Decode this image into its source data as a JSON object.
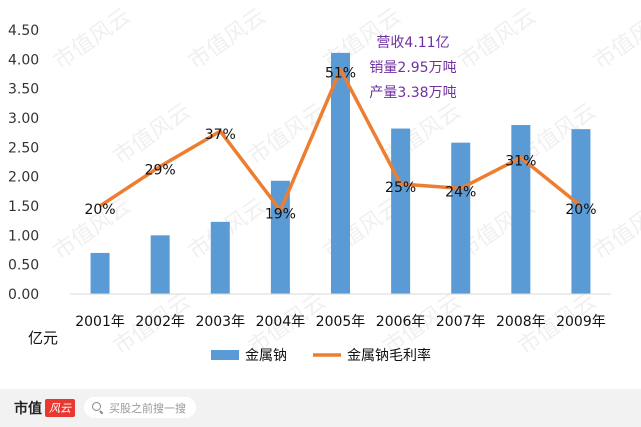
{
  "chart_data": {
    "type": "bar",
    "categories": [
      "2001年",
      "2002年",
      "2003年",
      "2004年",
      "2005年",
      "2006年",
      "2007年",
      "2008年",
      "2009年"
    ],
    "series": [
      {
        "name": "金属钠",
        "type": "bar",
        "color": "#5b9bd5",
        "values": [
          0.7,
          1.0,
          1.23,
          1.93,
          4.11,
          2.82,
          2.58,
          2.88,
          2.81
        ]
      },
      {
        "name": "金属钠毛利率",
        "type": "line",
        "color": "#ed7d31",
        "values": [
          20,
          29,
          37,
          19,
          51,
          25,
          24,
          31,
          20
        ],
        "labels": [
          "20%",
          "29%",
          "37%",
          "19%",
          "51%",
          "25%",
          "24%",
          "31%",
          "20%"
        ]
      }
    ],
    "ylim": [
      0,
      4.5
    ],
    "yticks": [
      "0.00",
      "0.50",
      "1.00",
      "1.50",
      "2.00",
      "2.50",
      "3.00",
      "3.50",
      "4.00",
      "4.50"
    ],
    "ylabel": "亿元",
    "annotations": [
      "营收4.11亿",
      "销量2.95万吨",
      "产量3.38万吨"
    ],
    "legend_position": "bottom",
    "grid": false
  },
  "watermark": "市值风云",
  "footer": {
    "brand": "市值",
    "brand_seal": "风云",
    "search_placeholder": "买股之前搜一搜"
  }
}
